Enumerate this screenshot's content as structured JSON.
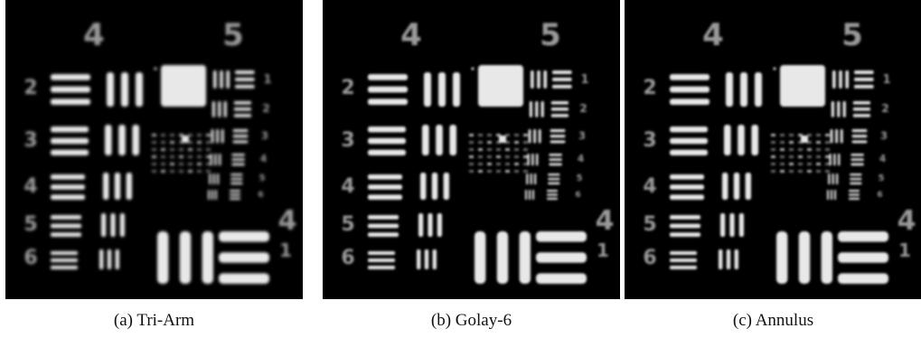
{
  "panels": [
    {
      "caption": "(a) Tri-Arm",
      "blur": 1.6,
      "group_labels": [
        "4",
        "5"
      ],
      "element_labels_left": [
        "2",
        "3",
        "4",
        "5",
        "6"
      ],
      "element_labels_right": [
        "1",
        "2",
        "3",
        "4",
        "5",
        "6"
      ],
      "bottom_group_label": "4",
      "bottom_element_label": "1"
    },
    {
      "caption": "(b) Golay-6",
      "blur": 1.2,
      "group_labels": [
        "4",
        "5"
      ],
      "element_labels_left": [
        "2",
        "3",
        "4",
        "5",
        "6"
      ],
      "element_labels_right": [
        "1",
        "2",
        "3",
        "4",
        "5",
        "6"
      ],
      "bottom_group_label": "4",
      "bottom_element_label": "1"
    },
    {
      "caption": "(c) Annulus",
      "blur": 1.3,
      "group_labels": [
        "4",
        "5"
      ],
      "element_labels_left": [
        "2",
        "3",
        "4",
        "5",
        "6"
      ],
      "element_labels_right": [
        "1",
        "2",
        "3",
        "4",
        "5",
        "6"
      ],
      "bottom_group_label": "4",
      "bottom_element_label": "1"
    }
  ],
  "colors": {
    "background": "#000000",
    "bars": "#e8e8e8",
    "labels": "#9a9a9a"
  }
}
